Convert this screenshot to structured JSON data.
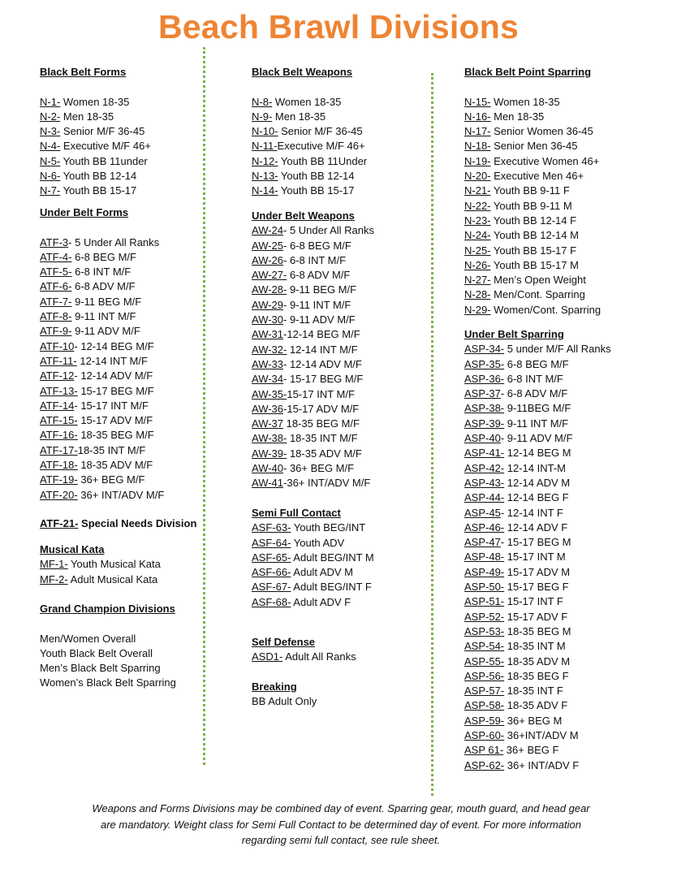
{
  "title": "Beach Brawl Divisions",
  "columns": {
    "bb_forms": {
      "heading": "Black Belt Forms",
      "items": [
        {
          "code": "N-1-",
          "text": " Women 18-35"
        },
        {
          "code": "N-2-",
          "text": " Men 18-35"
        },
        {
          "code": "N-3-",
          "text": " Senior M/F 36-45"
        },
        {
          "code": "N-4-",
          "text": " Executive M/F 46+"
        },
        {
          "code": "N-5-",
          "text": " Youth BB 11under"
        },
        {
          "code": "N-6-",
          "text": " Youth BB 12-14"
        },
        {
          "code": "N-7-",
          "text": " Youth BB 15-17"
        }
      ]
    },
    "ub_forms": {
      "heading": "Under Belt Forms",
      "items": [
        {
          "code": "ATF-3",
          "text": "- 5 Under All Ranks"
        },
        {
          "code": "ATF-4-",
          "text": " 6-8 BEG M/F"
        },
        {
          "code": "ATF-5-",
          "text": " 6-8 INT M/F"
        },
        {
          "code": "ATF-6-",
          "text": " 6-8 ADV M/F"
        },
        {
          "code": "ATF-7-",
          "text": " 9-11 BEG M/F"
        },
        {
          "code": "ATF-8-",
          "text": " 9-11 INT M/F"
        },
        {
          "code": "ATF-9-",
          "text": " 9-11 ADV M/F"
        },
        {
          "code": "ATF-10",
          "text": "- 12-14 BEG M/F"
        },
        {
          "code": "ATF-11-",
          "text": " 12-14 INT M/F"
        },
        {
          "code": "ATF-12",
          "text": "- 12-14 ADV M/F"
        },
        {
          "code": "ATF-13-",
          "text": " 15-17 BEG M/F"
        },
        {
          "code": "ATF-14",
          "text": "- 15-17 INT M/F"
        },
        {
          "code": "ATF-15-",
          "text": " 15-17 ADV M/F"
        },
        {
          "code": "ATF-16-",
          "text": " 18-35 BEG M/F"
        },
        {
          "code": "ATF-17-",
          "text": "18-35 INT M/F"
        },
        {
          "code": "ATF-18-",
          "text": " 18-35 ADV M/F"
        },
        {
          "code": "ATF-19-",
          "text": " 36+ BEG M/F"
        },
        {
          "code": "ATF-20-",
          "text": " 36+ INT/ADV M/F"
        }
      ]
    },
    "special": {
      "items": [
        {
          "code": "ATF-21-",
          "text": " Special Needs Division",
          "bold": true
        }
      ]
    },
    "musical": {
      "heading": "Musical Kata",
      "items": [
        {
          "code": "MF-1-",
          "text": " Youth Musical Kata"
        },
        {
          "code": "MF-2-",
          "text": " Adult Musical Kata"
        }
      ]
    },
    "grand": {
      "heading": "Grand Champion Divisions",
      "items": [
        {
          "text": "Men/Women Overall"
        },
        {
          "text": "Youth Black Belt Overall"
        },
        {
          "text": "Men’s Black Belt Sparring"
        },
        {
          "text": "Women’s Black Belt Sparring"
        }
      ]
    },
    "bb_weapons": {
      "heading": "Black Belt Weapons",
      "items": [
        {
          "code": "N-8-",
          "text": " Women 18-35"
        },
        {
          "code": "N-9-",
          "text": " Men 18-35"
        },
        {
          "code": "N-10-",
          "text": " Senior M/F 36-45"
        },
        {
          "code": "N-11-",
          "text": "Executive M/F 46+"
        },
        {
          "code": "N-12-",
          "text": " Youth BB 11Under"
        },
        {
          "code": "N-13-",
          "text": " Youth BB 12-14"
        },
        {
          "code": "N-14-",
          "text": " Youth BB 15-17"
        }
      ]
    },
    "ub_weapons": {
      "heading": "Under Belt Weapons",
      "items": [
        {
          "code": "AW-24",
          "text": "- 5 Under All Ranks"
        },
        {
          "code": "AW-25",
          "text": "- 6-8 BEG M/F"
        },
        {
          "code": "AW-26",
          "text": "- 6-8 INT M/F"
        },
        {
          "code": "AW-27-",
          "text": " 6-8 ADV M/F"
        },
        {
          "code": "AW-28-",
          "text": " 9-11 BEG M/F"
        },
        {
          "code": "AW-29",
          "text": "- 9-11 INT M/F"
        },
        {
          "code": "AW-30",
          "text": "- 9-11 ADV M/F"
        },
        {
          "code": "AW-31",
          "text": "-12-14 BEG M/F"
        },
        {
          "code": "AW-32-",
          "text": " 12-14 INT M/F"
        },
        {
          "code": "AW-33",
          "text": "- 12-14 ADV M/F"
        },
        {
          "code": "AW-34",
          "text": "- 15-17 BEG M/F"
        },
        {
          "code": "AW-35-",
          "text": "15-17 INT M/F"
        },
        {
          "code": "AW-36",
          "text": "-15-17 ADV M/F"
        },
        {
          "code": "AW-37",
          "text": " 18-35 BEG M/F"
        },
        {
          "code": "AW-38-",
          "text": " 18-35 INT M/F"
        },
        {
          "code": "AW-39-",
          "text": " 18-35 ADV M/F"
        },
        {
          "code": "AW-40",
          "text": "- 36+ BEG M/F"
        },
        {
          "code": "AW-41",
          "text": "-36+ INT/ADV M/F"
        }
      ]
    },
    "semi": {
      "heading": "Semi Full Contact",
      "items": [
        {
          "code": "ASF-63-",
          "text": " Youth BEG/INT"
        },
        {
          "code": "ASF-64-",
          "text": " Youth ADV"
        },
        {
          "code": "ASF-65-",
          "text": " Adult BEG/INT M"
        },
        {
          "code": "ASF-66-",
          "text": " Adult ADV M"
        },
        {
          "code": "ASF-67-",
          "text": " Adult BEG/INT F"
        },
        {
          "code": "ASF-68-",
          "text": " Adult ADV F"
        }
      ]
    },
    "self_defense": {
      "heading": "Self Defense",
      "items": [
        {
          "code": "ASD1-",
          "text": " Adult All Ranks"
        }
      ]
    },
    "breaking": {
      "heading": "Breaking",
      "items": [
        {
          "text": "BB Adult Only"
        }
      ]
    },
    "bb_sparring": {
      "heading": "Black Belt Point Sparring",
      "items": [
        {
          "code": "N-15-",
          "text": " Women 18-35"
        },
        {
          "code": "N-16-",
          "text": " Men 18-35"
        },
        {
          "code": "N-17-",
          "text": " Senior Women 36-45"
        },
        {
          "code": "N-18-",
          "text": " Senior Men 36-45"
        },
        {
          "code": "N-19-",
          "text": " Executive Women 46+"
        },
        {
          "code": "N-20-",
          "text": " Executive Men 46+"
        },
        {
          "code": "N-21-",
          "text": " Youth BB 9-11 F"
        },
        {
          "code": "N-22-",
          "text": " Youth BB 9-11 M"
        },
        {
          "code": "N-23-",
          "text": " Youth BB 12-14 F"
        },
        {
          "code": "N-24-",
          "text": " Youth BB 12-14 M"
        },
        {
          "code": "N-25-",
          "text": " Youth BB 15-17 F"
        },
        {
          "code": "N-26-",
          "text": " Youth BB 15-17 M"
        },
        {
          "code": "N-27-",
          "text": " Men’s Open Weight"
        },
        {
          "code": "N-28-",
          "text": " Men/Cont. Sparring"
        },
        {
          "code": "N-29-",
          "text": " Women/Cont. Sparring"
        }
      ]
    },
    "ub_sparring": {
      "heading": "Under Belt Sparring",
      "items": [
        {
          "code": "ASP-34-",
          "text": " 5 under M/F All Ranks"
        },
        {
          "code": "ASP-35-",
          "text": " 6-8 BEG M/F"
        },
        {
          "code": "ASP-36-",
          "text": " 6-8 INT M/F"
        },
        {
          "code": "ASP-37",
          "text": "- 6-8 ADV M/F"
        },
        {
          "code": "ASP-38-",
          "text": " 9-11BEG M/F"
        },
        {
          "code": "ASP-39-",
          "text": " 9-11 INT M/F"
        },
        {
          "code": "ASP-40",
          "text": "- 9-11 ADV M/F"
        },
        {
          "code": "ASP-41-",
          "text": " 12-14 BEG M"
        },
        {
          "code": "ASP-42-",
          "text": " 12-14 INT-M"
        },
        {
          "code": "ASP-43-",
          "text": " 12-14 ADV M"
        },
        {
          "code": "ASP-44-",
          "text": " 12-14 BEG F"
        },
        {
          "code": "ASP-45",
          "text": "- 12-14 INT F"
        },
        {
          "code": "ASP-46-",
          "text": " 12-14 ADV F"
        },
        {
          "code": "ASP-47",
          "text": "- 15-17 BEG M"
        },
        {
          "code": "ASP-48-",
          "text": " 15-17 INT M"
        },
        {
          "code": "ASP-49-",
          "text": " 15-17 ADV M"
        },
        {
          "code": "ASP-50-",
          "text": " 15-17 BEG F"
        },
        {
          "code": "ASP-51-",
          "text": " 15-17 INT F"
        },
        {
          "code": "ASP-52-",
          "text": " 15-17 ADV F"
        },
        {
          "code": "ASP-53-",
          "text": " 18-35 BEG M"
        },
        {
          "code": "ASP-54-",
          "text": " 18-35 INT M"
        },
        {
          "code": "ASP-55-",
          "text": " 18-35 ADV M"
        },
        {
          "code": "ASP-56-",
          "text": " 18-35 BEG F"
        },
        {
          "code": "ASP-57-",
          "text": " 18-35 INT F"
        },
        {
          "code": "ASP-58-",
          "text": " 18-35 ADV F"
        },
        {
          "code": "ASP-59-",
          "text": " 36+ BEG M"
        },
        {
          "code": "ASP-60-",
          "text": " 36+INT/ADV M"
        },
        {
          "code": "ASP 61-",
          "text": " 36+ BEG F"
        },
        {
          "code": "ASP-62-",
          "text": " 36+ INT/ADV F"
        }
      ]
    }
  },
  "footer": {
    "line1": "Weapons and Forms Divisions may be combined day of event. Sparring gear, mouth guard, and head gear",
    "line2": "are mandatory. Weight class for Semi Full Contact to be determined day of event. For more information",
    "line3": "regarding semi full contact, see rule sheet."
  },
  "colors": {
    "title": "#EE8434",
    "divider": "#7DB24A"
  }
}
